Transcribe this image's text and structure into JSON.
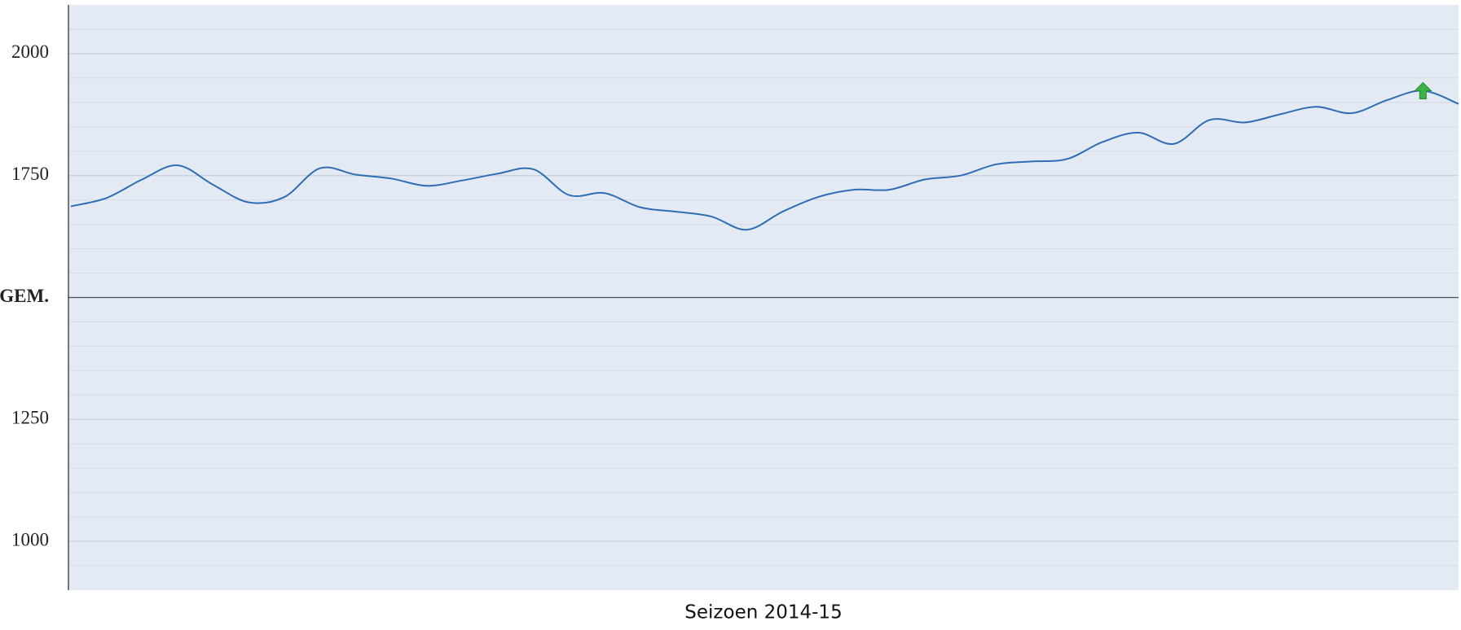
{
  "chart_data": {
    "type": "line",
    "x_label": "Seizoen 2014-15",
    "series": [
      {
        "color": "#2e6db4",
        "values": [
          1687,
          1704,
          1742,
          1771,
          1731,
          1695,
          1706,
          1765,
          1752,
          1744,
          1729,
          1740,
          1754,
          1763,
          1710,
          1714,
          1685,
          1676,
          1666,
          1639,
          1676,
          1706,
          1721,
          1721,
          1742,
          1750,
          1773,
          1779,
          1784,
          1819,
          1838,
          1815,
          1864,
          1859,
          1876,
          1891,
          1878,
          1905,
          1924,
          1897
        ]
      }
    ],
    "ylim": [
      900,
      2100
    ],
    "yticks": [
      1000,
      1250,
      {
        "value": 1500,
        "label": "GEM."
      },
      1750,
      2000
    ],
    "grid": true
  }
}
